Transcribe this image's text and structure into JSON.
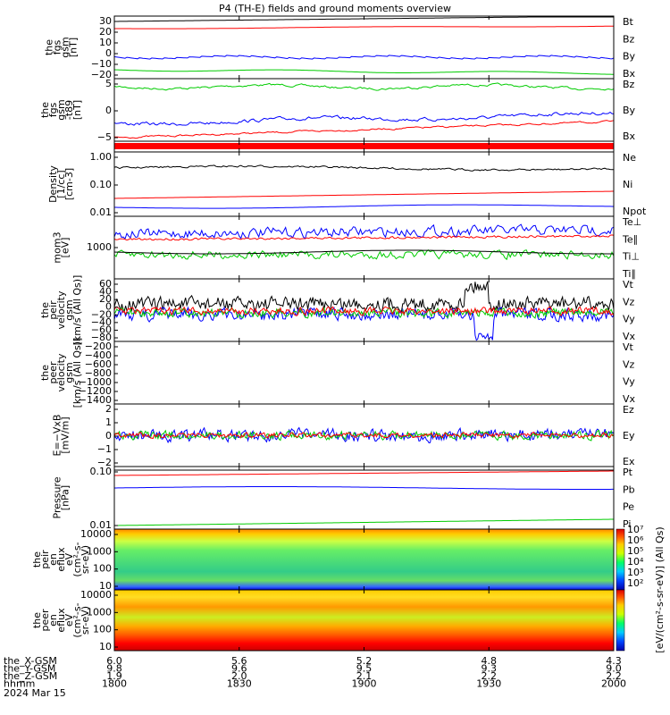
{
  "colors": {
    "black": "#000000",
    "red": "#ff0000",
    "green": "#00cc00",
    "blue": "#0000ff"
  },
  "chart_data": {
    "type": "line",
    "title": "P4 (TH-E) fields and ground moments overview",
    "time_axis": {
      "tick_labels": [
        "1800",
        "1830",
        "1900",
        "1930",
        "2000"
      ]
    },
    "coordinate_rows": [
      {
        "label": "the_X-GSM",
        "values": [
          "6.0",
          "5.6",
          "5.2",
          "4.8",
          "4.3"
        ]
      },
      {
        "label": "the_Y-GSM",
        "values": [
          "9.8",
          "9.6",
          "9.5",
          "9.3",
          "9.0"
        ]
      },
      {
        "label": "the_Z-GSM",
        "values": [
          "1.9",
          "2.0",
          "2.1",
          "2.2",
          "2.2"
        ]
      },
      {
        "label": "hhmm",
        "values": [
          "1800",
          "1830",
          "1900",
          "1930",
          "2000"
        ]
      }
    ],
    "date_label": "2024 Mar 15",
    "panels": [
      {
        "ylabel": [
          "the",
          "fgs",
          "gsm",
          "[nT]"
        ],
        "ticks": [
          "30",
          "20",
          "10",
          "0",
          "−10",
          "−20"
        ],
        "legend": [
          {
            "name": "Bt",
            "color": "black"
          },
          {
            "name": "Bz",
            "color": "red"
          },
          {
            "name": "By",
            "color": "green"
          },
          {
            "name": "Bx",
            "color": "blue"
          }
        ]
      },
      {
        "ylabel": [
          "the",
          "fgs",
          "gsm",
          "-t89",
          "[nT]"
        ],
        "ticks": [
          "5",
          "0",
          "−5"
        ],
        "legend": [
          {
            "name": "Bz",
            "color": "red"
          },
          {
            "name": "By",
            "color": "green"
          },
          {
            "name": "Bx",
            "color": "blue"
          }
        ]
      },
      {
        "ylabel": [],
        "ticks": [],
        "legend": []
      },
      {
        "ylabel": [
          "Density",
          "[1/cc]",
          "[cm-3]"
        ],
        "ticks": [
          "1.00",
          "0.10",
          "0.01"
        ],
        "legend": [
          {
            "name": "Ne",
            "color": "red"
          },
          {
            "name": "Ni",
            "color": "black"
          },
          {
            "name": "Npot",
            "color": "blue"
          }
        ]
      },
      {
        "ylabel": [
          "mom3",
          "[eV]"
        ],
        "ticks": [
          "1000"
        ],
        "legend": [
          {
            "name": "Te⊥",
            "color": "red"
          },
          {
            "name": "Te∥",
            "color": "black"
          },
          {
            "name": "Ti⊥",
            "color": "green"
          },
          {
            "name": "Ti∥",
            "color": "green"
          }
        ]
      },
      {
        "ylabel": [
          "the",
          "peir",
          "velocity",
          "gsm",
          "[km/s (All Qs)]"
        ],
        "ticks": [
          "60",
          "40",
          "20",
          "0",
          "−20",
          "−40",
          "−60",
          "−80"
        ],
        "legend": [
          {
            "name": "Vt",
            "color": "black"
          },
          {
            "name": "Vz",
            "color": "red"
          },
          {
            "name": "Vy",
            "color": "green"
          },
          {
            "name": "Vx",
            "color": "blue"
          }
        ]
      },
      {
        "ylabel": [
          "the",
          "peer",
          "velocity",
          "gsm",
          "[km/s (All Qs)]"
        ],
        "ticks": [
          "−200",
          "−400",
          "−600",
          "−800",
          "−1000",
          "−1200",
          "−1400"
        ],
        "legend": [
          {
            "name": "Vt",
            "color": "black"
          },
          {
            "name": "Vz",
            "color": "red"
          },
          {
            "name": "Vy",
            "color": "green"
          },
          {
            "name": "Vx",
            "color": "blue"
          }
        ]
      },
      {
        "ylabel": [
          "E=−VxB",
          "[mV/m]"
        ],
        "ticks": [
          "2",
          "1",
          "0",
          "−1",
          "−2"
        ],
        "legend": [
          {
            "name": "Ez",
            "color": "red"
          },
          {
            "name": "Ey",
            "color": "green"
          },
          {
            "name": "Ex",
            "color": "blue"
          }
        ]
      },
      {
        "ylabel": [
          "Pressure",
          "[nPa]"
        ],
        "ticks": [
          "0.10",
          "0.01"
        ],
        "legend": [
          {
            "name": "Pt",
            "color": "black"
          },
          {
            "name": "Pb",
            "color": "red"
          },
          {
            "name": "Pe",
            "color": "green"
          },
          {
            "name": "Pi",
            "color": "blue"
          }
        ]
      },
      {
        "ylabel": [
          "the",
          "peir",
          "en",
          "eflux",
          "eV",
          "(cm²-s-",
          "sr-eV)"
        ],
        "ticks": [
          "10000",
          "1000",
          "100",
          "10"
        ],
        "legend": []
      },
      {
        "ylabel": [
          "the",
          "peer",
          "en",
          "eflux",
          "eV",
          "(cm²-s-",
          "sr-eV)"
        ],
        "ticks": [
          "10000",
          "1000",
          "100",
          "10"
        ],
        "legend": []
      }
    ],
    "colorbar": {
      "label": "[eV/(cm²-s-sr-eV)] (All Qs)",
      "ticks": [
        "10⁷",
        "10⁶",
        "10⁵",
        "10⁴",
        "10³",
        "10²"
      ]
    },
    "series_shapes": {
      "fgs": {
        "Bt": 33,
        "Bz": 28,
        "By": -14,
        "Bx": 0
      },
      "t89": {
        "Bz": 5,
        "By": 0,
        "Bx": -4
      }
    }
  }
}
